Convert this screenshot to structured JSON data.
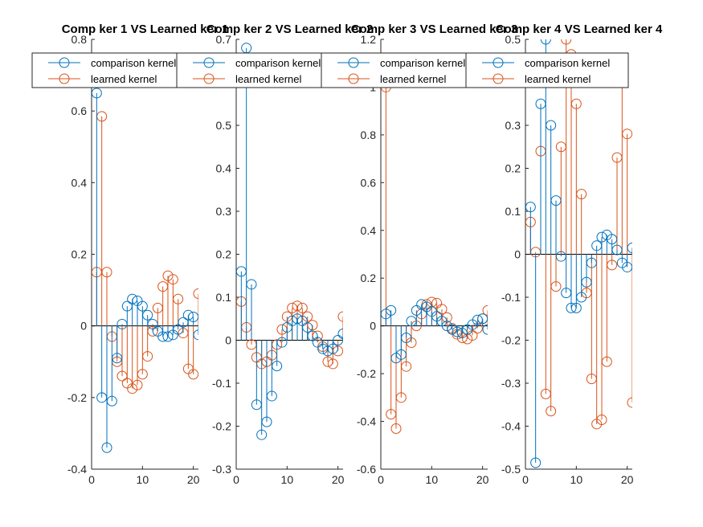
{
  "colors": {
    "comparison": "#0072BD",
    "learned": "#D95319",
    "axis": "#262626",
    "background": "#ffffff"
  },
  "chart_data": [
    {
      "type": "stem",
      "title": "Comp ker 1  VS Learned ker 1",
      "xlim": [
        0,
        21
      ],
      "ylim": [
        -0.4,
        0.8
      ],
      "xticks": [
        "0",
        "10",
        "20"
      ],
      "yticks": [
        "-0.4",
        "-0.2",
        "0",
        "0.2",
        "0.4",
        "0.6",
        "0.8"
      ],
      "legend": {
        "location": "top",
        "entries": [
          "comparison kernel",
          "learned kernel"
        ]
      },
      "x": [
        1,
        2,
        3,
        4,
        5,
        6,
        7,
        8,
        9,
        10,
        11,
        12,
        13,
        14,
        15,
        16,
        17,
        18,
        19,
        20,
        21
      ],
      "series": [
        {
          "name": "comparison kernel",
          "values": [
            0.65,
            -0.2,
            -0.34,
            -0.21,
            -0.09,
            0.005,
            0.055,
            0.075,
            0.07,
            0.055,
            0.03,
            0.005,
            -0.015,
            -0.03,
            -0.03,
            -0.025,
            -0.01,
            0.01,
            0.03,
            0.025,
            -0.025
          ]
        },
        {
          "name": "learned kernel",
          "values": [
            0.15,
            0.585,
            0.15,
            -0.03,
            -0.1,
            -0.14,
            -0.16,
            -0.175,
            -0.165,
            -0.135,
            -0.085,
            -0.015,
            0.05,
            0.11,
            0.14,
            0.13,
            0.075,
            -0.02,
            -0.12,
            -0.135,
            0.09
          ]
        }
      ]
    },
    {
      "type": "stem",
      "title": "Comp ker 2  VS Learned ker 2",
      "xlim": [
        0,
        21
      ],
      "ylim": [
        -0.3,
        0.7
      ],
      "xticks": [
        "0",
        "10",
        "20"
      ],
      "yticks": [
        "-0.3",
        "-0.2",
        "-0.1",
        "0",
        "0.1",
        "0.2",
        "0.3",
        "0.4",
        "0.5",
        "0.6",
        "0.7"
      ],
      "legend": {
        "location": "top",
        "entries": [
          "comparison kernel",
          "learned kernel"
        ]
      },
      "x": [
        1,
        2,
        3,
        4,
        5,
        6,
        7,
        8,
        9,
        10,
        11,
        12,
        13,
        14,
        15,
        16,
        17,
        18,
        19,
        20,
        21
      ],
      "series": [
        {
          "name": "comparison kernel",
          "values": [
            0.16,
            0.68,
            0.13,
            -0.15,
            -0.22,
            -0.19,
            -0.13,
            -0.06,
            -0.005,
            0.03,
            0.045,
            0.05,
            0.045,
            0.03,
            0.01,
            -0.005,
            -0.02,
            -0.025,
            -0.02,
            0.0,
            0.015
          ]
        },
        {
          "name": "learned kernel",
          "values": [
            0.09,
            0.03,
            -0.01,
            -0.04,
            -0.055,
            -0.05,
            -0.035,
            -0.01,
            0.025,
            0.055,
            0.075,
            0.08,
            0.075,
            0.055,
            0.035,
            0.01,
            -0.015,
            -0.05,
            -0.055,
            -0.025,
            0.055
          ]
        }
      ]
    },
    {
      "type": "stem",
      "title": "Comp ker 3  VS Learned ker 3",
      "xlim": [
        0,
        21
      ],
      "ylim": [
        -0.6,
        1.2
      ],
      "xticks": [
        "0",
        "10",
        "20"
      ],
      "yticks": [
        "-0.6",
        "-0.4",
        "-0.2",
        "0",
        "0.2",
        "0.4",
        "0.6",
        "0.8",
        "1",
        "1.2"
      ],
      "legend": {
        "location": "top",
        "entries": [
          "comparison kernel",
          "learned kernel"
        ]
      },
      "x": [
        1,
        2,
        3,
        4,
        5,
        6,
        7,
        8,
        9,
        10,
        11,
        12,
        13,
        14,
        15,
        16,
        17,
        18,
        19,
        20,
        21
      ],
      "series": [
        {
          "name": "comparison kernel",
          "values": [
            0.05,
            0.065,
            -0.135,
            -0.12,
            -0.05,
            0.02,
            0.065,
            0.09,
            0.08,
            0.06,
            0.04,
            0.02,
            0.0,
            -0.015,
            -0.025,
            -0.03,
            -0.015,
            0.005,
            0.025,
            0.03,
            -0.015
          ]
        },
        {
          "name": "learned kernel",
          "values": [
            1.0,
            -0.37,
            -0.43,
            -0.3,
            -0.17,
            -0.07,
            0.0,
            0.05,
            0.09,
            0.1,
            0.095,
            0.07,
            0.035,
            -0.01,
            -0.035,
            -0.05,
            -0.055,
            -0.04,
            -0.01,
            0.03,
            0.065
          ]
        }
      ]
    },
    {
      "type": "stem",
      "title": "Comp ker 4  VS Learned ker 4",
      "xlim": [
        0,
        21
      ],
      "ylim": [
        -0.5,
        0.5
      ],
      "xticks": [
        "0",
        "10",
        "20"
      ],
      "yticks": [
        "-0.5",
        "-0.4",
        "-0.3",
        "-0.2",
        "-0.1",
        "0",
        "0.1",
        "0.2",
        "0.3",
        "0.4",
        "0.5"
      ],
      "legend": {
        "location": "top",
        "entries": [
          "comparison kernel",
          "learned kernel"
        ]
      },
      "x": [
        1,
        2,
        3,
        4,
        5,
        6,
        7,
        8,
        9,
        10,
        11,
        12,
        13,
        14,
        15,
        16,
        17,
        18,
        19,
        20,
        21
      ],
      "series": [
        {
          "name": "comparison kernel",
          "values": [
            0.11,
            -0.485,
            0.35,
            0.5,
            0.3,
            0.125,
            -0.005,
            -0.09,
            -0.125,
            -0.125,
            -0.1,
            -0.065,
            -0.02,
            0.02,
            0.04,
            0.045,
            0.035,
            0.01,
            -0.02,
            -0.03,
            0.015
          ]
        },
        {
          "name": "learned kernel",
          "values": [
            0.075,
            0.005,
            0.24,
            -0.325,
            -0.365,
            -0.075,
            0.25,
            0.5,
            0.465,
            0.35,
            0.14,
            -0.09,
            -0.29,
            -0.395,
            -0.385,
            -0.25,
            -0.025,
            0.225,
            0.41,
            0.28,
            -0.345
          ]
        }
      ]
    }
  ]
}
